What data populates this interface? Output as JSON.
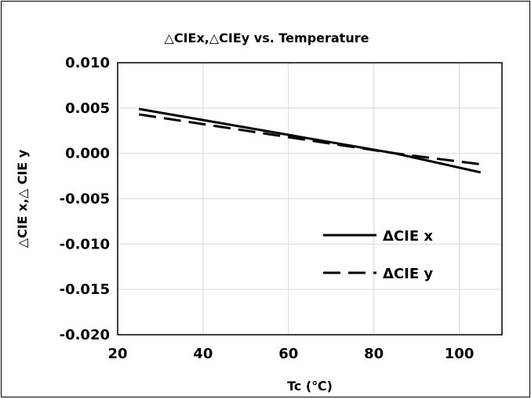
{
  "chart_data": {
    "type": "line",
    "title": "△CIEx,△CIEy vs. Temperature",
    "xlabel": "Tc (℃)",
    "ylabel": "△CIE x,△ CIE y",
    "xlim": [
      20,
      110
    ],
    "ylim": [
      -0.02,
      0.01
    ],
    "x_ticks": [
      20,
      40,
      60,
      80,
      100
    ],
    "x_tick_labels": [
      "20",
      "40",
      "60",
      "80",
      "100"
    ],
    "y_ticks": [
      0.01,
      0.005,
      0.0,
      -0.005,
      -0.01,
      -0.015,
      -0.02
    ],
    "y_tick_labels": [
      "0.010",
      "0.005",
      "0.000",
      "-0.005",
      "-0.010",
      "-0.015",
      "-0.020"
    ],
    "grid": true,
    "legend_position": "right-middle",
    "series": [
      {
        "name": "ΔCIE x",
        "style": "solid",
        "color": "#000000",
        "x": [
          25,
          85,
          105
        ],
        "y": [
          0.0049,
          0.0,
          -0.0021
        ]
      },
      {
        "name": "ΔCIE y",
        "style": "dashed",
        "color": "#000000",
        "x": [
          25,
          85,
          105
        ],
        "y": [
          0.0043,
          0.0,
          -0.0012
        ]
      }
    ]
  }
}
